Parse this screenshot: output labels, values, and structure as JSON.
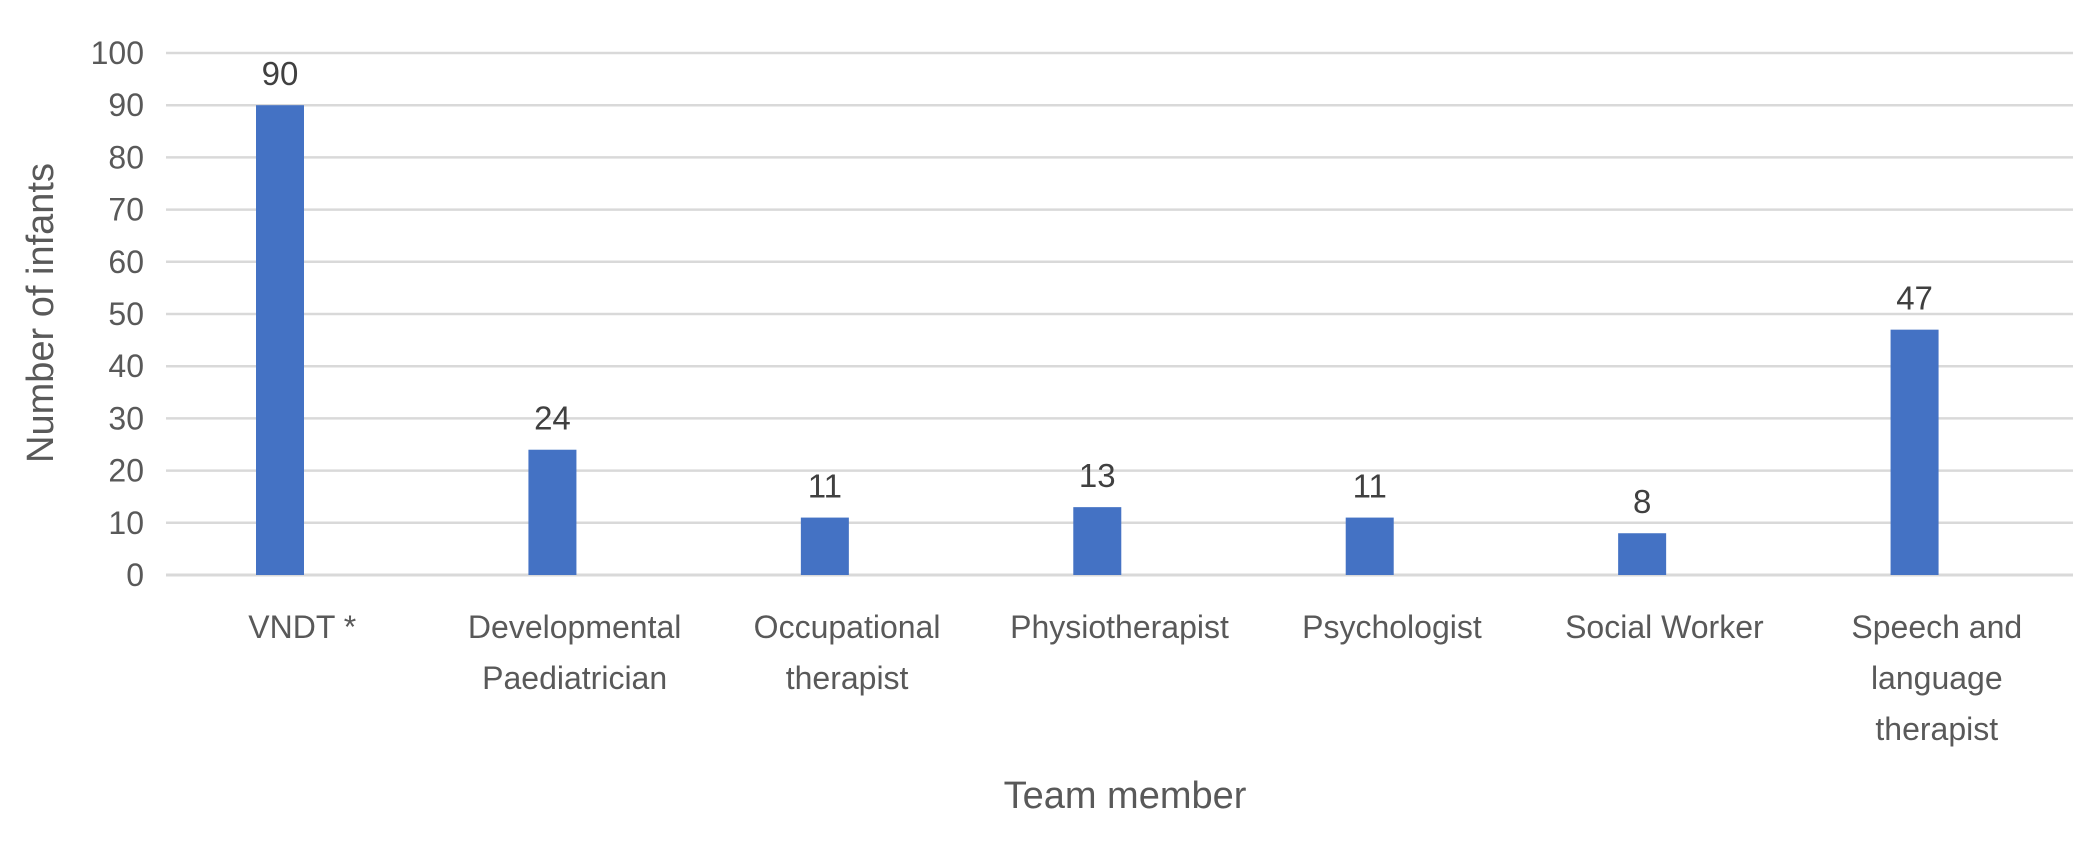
{
  "chart_data": {
    "type": "bar",
    "categories": [
      [
        "VNDT *"
      ],
      [
        "Developmental",
        "Paediatrician"
      ],
      [
        "Occupational",
        "therapist"
      ],
      [
        "Physiotherapist"
      ],
      [
        "Psychologist"
      ],
      [
        "Social Worker"
      ],
      [
        "Speech and",
        "language",
        "therapist"
      ]
    ],
    "values": [
      90,
      24,
      11,
      13,
      11,
      8,
      47
    ],
    "xlabel": "Team member",
    "ylabel": "Number of infants",
    "ylim": [
      0,
      100
    ],
    "yticks": [
      0,
      10,
      20,
      30,
      40,
      50,
      60,
      70,
      80,
      90,
      100
    ],
    "grid": true,
    "legend": "none",
    "bar_color": "#4472c4",
    "grid_color": "#d9d9d9",
    "text_color": "#595959"
  }
}
